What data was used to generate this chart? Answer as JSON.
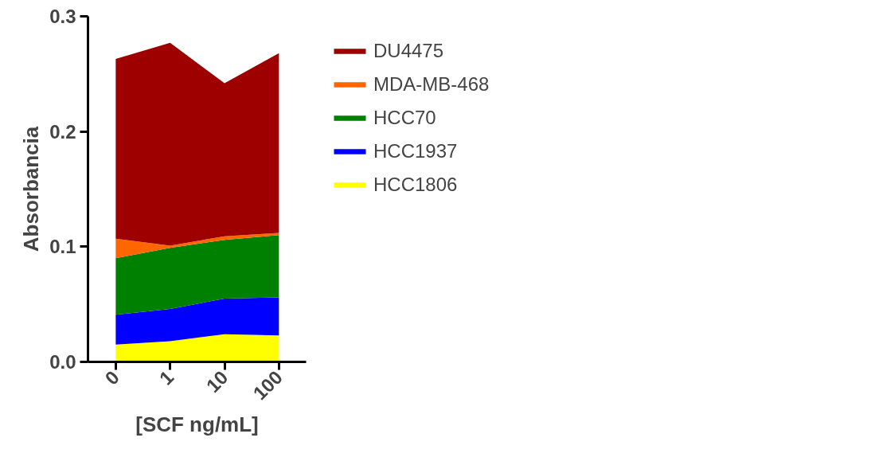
{
  "chart_data": {
    "type": "area",
    "stacked": true,
    "xlabel": "[SCF ng/mL]",
    "ylabel": "Absorbancia",
    "categories": [
      "0",
      "1",
      "10",
      "100"
    ],
    "ylim": [
      0,
      0.3
    ],
    "yticks": [
      {
        "value": 0,
        "label": "0.0"
      },
      {
        "value": 0.1,
        "label": "0.1"
      },
      {
        "value": 0.2,
        "label": "0.2"
      },
      {
        "value": 0.3,
        "label": "0.3"
      }
    ],
    "grid": false,
    "legend": "right",
    "series": [
      {
        "name": "HCC1806",
        "color": "#ffff00",
        "values": [
          0.015,
          0.018,
          0.024,
          0.023
        ]
      },
      {
        "name": "HCC1937",
        "color": "#0000ff",
        "values": [
          0.026,
          0.028,
          0.031,
          0.033
        ]
      },
      {
        "name": "HCC70",
        "color": "#008000",
        "values": [
          0.049,
          0.053,
          0.051,
          0.054
        ]
      },
      {
        "name": "MDA-MB-468",
        "color": "#ff6600",
        "values": [
          0.017,
          0.002,
          0.003,
          0.002
        ]
      },
      {
        "name": "DU4475",
        "color": "#9e0000",
        "values": [
          0.156,
          0.176,
          0.133,
          0.156
        ]
      }
    ]
  }
}
